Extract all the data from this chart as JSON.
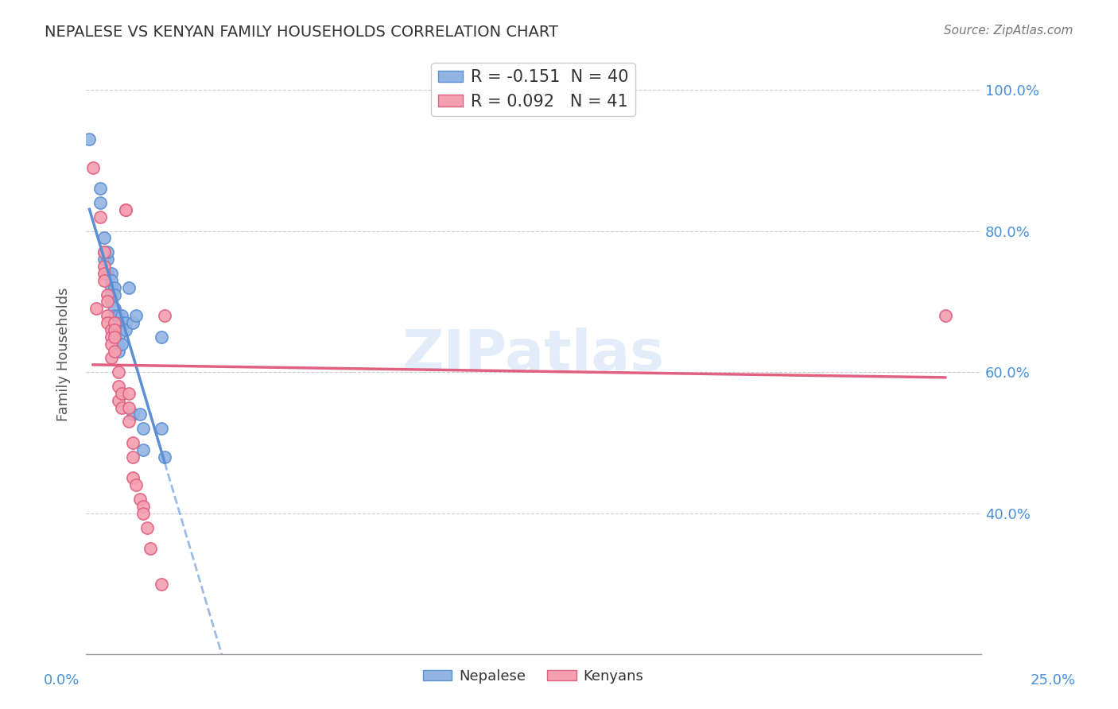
{
  "title": "NEPALESE VS KENYAN FAMILY HOUSEHOLDS CORRELATION CHART",
  "source": "Source: ZipAtlas.com",
  "ylabel": "Family Households",
  "ylabel_right_ticks": [
    "40.0%",
    "60.0%",
    "80.0%",
    "100.0%"
  ],
  "ylabel_right_vals": [
    0.4,
    0.6,
    0.8,
    1.0
  ],
  "legend1_text": "R = -0.151  N = 40",
  "legend2_text": "R = 0.092   N = 41",
  "watermark": "ZIPatlas",
  "nepalese_color": "#92b4e3",
  "kenyan_color": "#f4a0b0",
  "nepalese_line_color": "#5b8fd4",
  "kenyan_line_color": "#e06080",
  "nepalese_scatter": [
    [
      0.001,
      0.93
    ],
    [
      0.004,
      0.84
    ],
    [
      0.004,
      0.86
    ],
    [
      0.005,
      0.79
    ],
    [
      0.005,
      0.77
    ],
    [
      0.005,
      0.76
    ],
    [
      0.006,
      0.74
    ],
    [
      0.006,
      0.76
    ],
    [
      0.006,
      0.77
    ],
    [
      0.007,
      0.74
    ],
    [
      0.007,
      0.73
    ],
    [
      0.007,
      0.72
    ],
    [
      0.007,
      0.71
    ],
    [
      0.007,
      0.7
    ],
    [
      0.008,
      0.72
    ],
    [
      0.008,
      0.71
    ],
    [
      0.008,
      0.69
    ],
    [
      0.008,
      0.68
    ],
    [
      0.008,
      0.67
    ],
    [
      0.008,
      0.66
    ],
    [
      0.009,
      0.68
    ],
    [
      0.009,
      0.66
    ],
    [
      0.009,
      0.65
    ],
    [
      0.009,
      0.64
    ],
    [
      0.009,
      0.63
    ],
    [
      0.01,
      0.68
    ],
    [
      0.01,
      0.67
    ],
    [
      0.01,
      0.64
    ],
    [
      0.011,
      0.67
    ],
    [
      0.011,
      0.66
    ],
    [
      0.012,
      0.72
    ],
    [
      0.013,
      0.67
    ],
    [
      0.013,
      0.54
    ],
    [
      0.014,
      0.68
    ],
    [
      0.015,
      0.54
    ],
    [
      0.016,
      0.52
    ],
    [
      0.016,
      0.49
    ],
    [
      0.021,
      0.65
    ],
    [
      0.021,
      0.52
    ],
    [
      0.022,
      0.48
    ]
  ],
  "kenyan_scatter": [
    [
      0.002,
      0.89
    ],
    [
      0.003,
      0.69
    ],
    [
      0.004,
      0.82
    ],
    [
      0.005,
      0.77
    ],
    [
      0.005,
      0.75
    ],
    [
      0.005,
      0.74
    ],
    [
      0.005,
      0.73
    ],
    [
      0.006,
      0.71
    ],
    [
      0.006,
      0.7
    ],
    [
      0.006,
      0.68
    ],
    [
      0.006,
      0.67
    ],
    [
      0.007,
      0.66
    ],
    [
      0.007,
      0.65
    ],
    [
      0.007,
      0.64
    ],
    [
      0.007,
      0.62
    ],
    [
      0.008,
      0.67
    ],
    [
      0.008,
      0.66
    ],
    [
      0.008,
      0.65
    ],
    [
      0.008,
      0.63
    ],
    [
      0.009,
      0.6
    ],
    [
      0.009,
      0.58
    ],
    [
      0.009,
      0.56
    ],
    [
      0.01,
      0.57
    ],
    [
      0.01,
      0.55
    ],
    [
      0.011,
      0.83
    ],
    [
      0.011,
      0.83
    ],
    [
      0.012,
      0.57
    ],
    [
      0.012,
      0.55
    ],
    [
      0.012,
      0.53
    ],
    [
      0.013,
      0.5
    ],
    [
      0.013,
      0.48
    ],
    [
      0.013,
      0.45
    ],
    [
      0.014,
      0.44
    ],
    [
      0.015,
      0.42
    ],
    [
      0.016,
      0.41
    ],
    [
      0.016,
      0.4
    ],
    [
      0.017,
      0.38
    ],
    [
      0.018,
      0.35
    ],
    [
      0.021,
      0.3
    ],
    [
      0.022,
      0.68
    ],
    [
      0.24,
      0.68
    ]
  ],
  "xlim": [
    0.0,
    0.25
  ],
  "ylim": [
    0.2,
    1.05
  ],
  "background_color": "#ffffff",
  "grid_color": "#cccccc"
}
